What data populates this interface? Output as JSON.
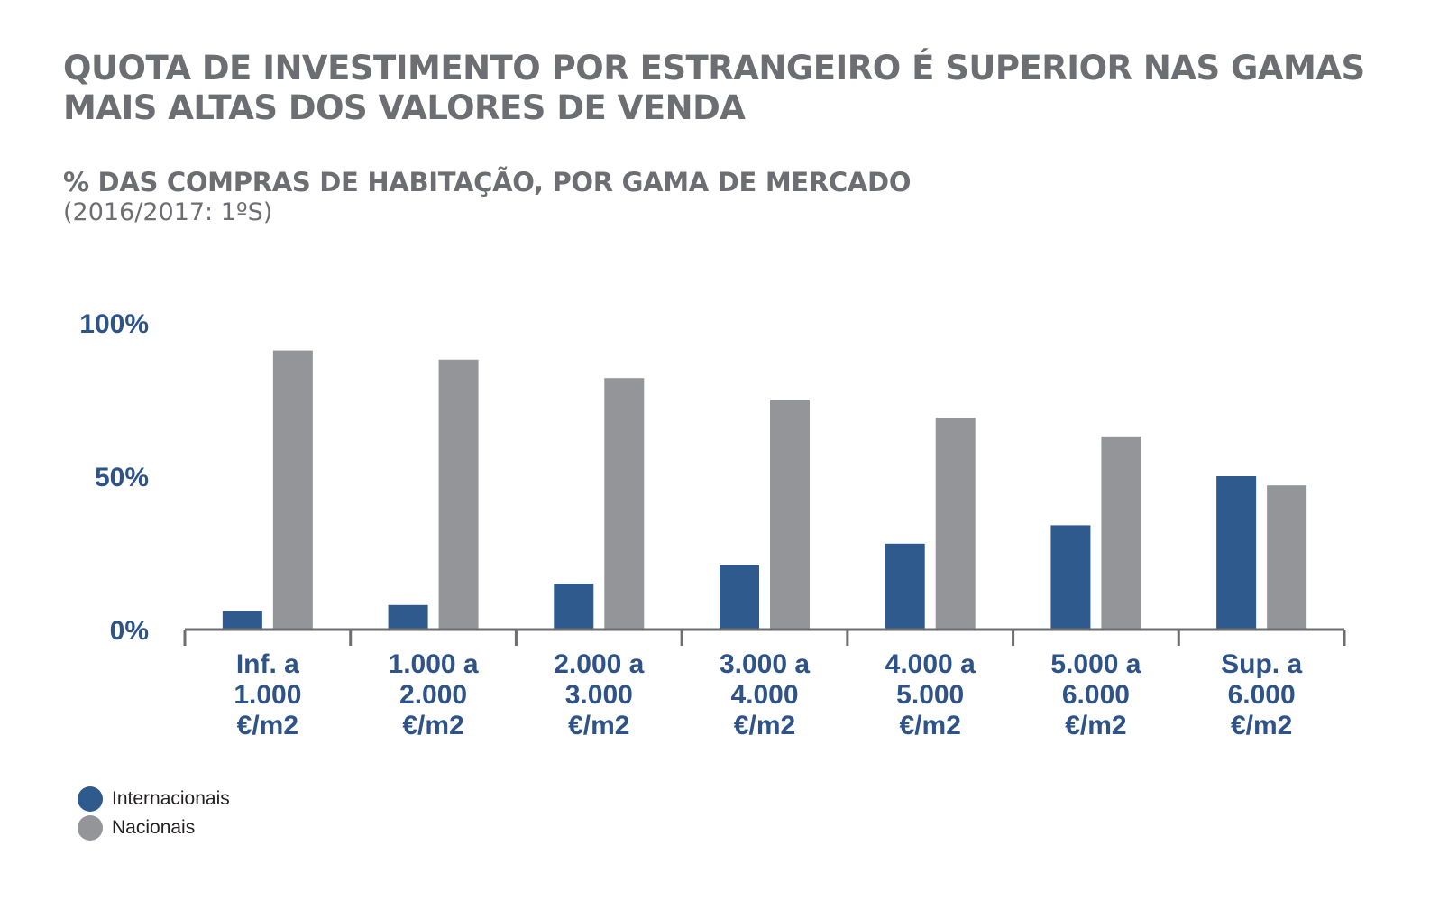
{
  "title": "QUOTA DE INVESTIMENTO POR ESTRANGEIRO É SUPERIOR NAS GAMAS MAIS ALTAS DOS VALORES DE VENDA",
  "subtitle": "% DAS COMPRAS DE HABITAÇÃO, POR GAMA DE MERCADO",
  "period": "(2016/2017: 1ºS)",
  "colors": {
    "internacionais": "#2e5a8e",
    "nacionais": "#939598",
    "axis": "#6d6e71",
    "label": "#2e5388"
  },
  "legend": [
    {
      "name": "Internacionais",
      "color": "#2e5a8e"
    },
    {
      "name": "Nacionais",
      "color": "#939598"
    }
  ],
  "chart_data": {
    "type": "bar",
    "categories": [
      [
        "Inf. a",
        "1.000",
        "€/m2"
      ],
      [
        "1.000 a",
        "2.000",
        "€/m2"
      ],
      [
        "2.000 a",
        "3.000",
        "€/m2"
      ],
      [
        "3.000 a",
        "4.000",
        "€/m2"
      ],
      [
        "4.000 a",
        "5.000",
        "€/m2"
      ],
      [
        "5.000 a",
        "6.000",
        "€/m2"
      ],
      [
        "Sup. a",
        "6.000",
        "€/m2"
      ]
    ],
    "series": [
      {
        "name": "Internacionais",
        "values": [
          6,
          8,
          15,
          21,
          28,
          34,
          50
        ]
      },
      {
        "name": "Nacionais",
        "values": [
          91,
          88,
          82,
          75,
          69,
          63,
          47
        ]
      }
    ],
    "yticks": [
      {
        "value": 0,
        "label": "0%"
      },
      {
        "value": 50,
        "label": "50%"
      },
      {
        "value": 100,
        "label": "100%"
      }
    ],
    "ylim": [
      0,
      100
    ],
    "grid": false,
    "legend_position": "bottom-left"
  }
}
